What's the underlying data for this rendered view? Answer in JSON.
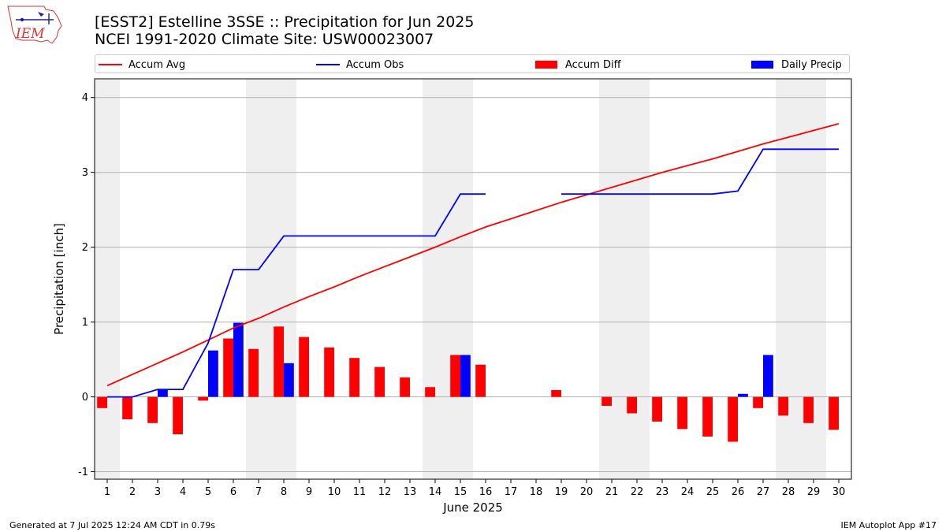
{
  "header": {
    "logo_text": "IEM",
    "title_line1": "[ESST2] Estelline 3SSE :: Precipitation for Jun 2025",
    "title_line2": "NCEI 1991-2020 Climate Site: USW00023007"
  },
  "legend": {
    "placement": "top",
    "items": [
      {
        "label": "Accum Avg",
        "kind": "line",
        "color": "#ff0000"
      },
      {
        "label": "Accum Obs",
        "kind": "line",
        "color": "#0000ff"
      },
      {
        "label": "Accum Diff",
        "kind": "bar",
        "color": "#ff0000"
      },
      {
        "label": "Daily Precip",
        "kind": "bar",
        "color": "#0000ff"
      }
    ]
  },
  "footer": {
    "left": "Generated at 7 Jul 2025 12:24 AM CDT in 0.79s",
    "right": "IEM Autoplot App #17"
  },
  "chart_data": {
    "type": "bar",
    "xlabel": "June 2025",
    "ylabel": "Precipitation [inch]",
    "xlim": [
      0.5,
      30.5
    ],
    "ylim": [
      -1.1,
      4.25
    ],
    "yticks": [
      -1,
      0,
      1,
      2,
      3,
      4
    ],
    "grid": "horizontal",
    "weekend_shading": [
      [
        0.5,
        1.5
      ],
      [
        6.5,
        8.5
      ],
      [
        13.5,
        15.5
      ],
      [
        20.5,
        22.5
      ],
      [
        27.5,
        29.5
      ]
    ],
    "days": [
      1,
      2,
      3,
      4,
      5,
      6,
      7,
      8,
      9,
      10,
      11,
      12,
      13,
      14,
      15,
      16,
      17,
      18,
      19,
      20,
      21,
      22,
      23,
      24,
      25,
      26,
      27,
      28,
      29,
      30
    ],
    "series": [
      {
        "name": "Accum Avg",
        "kind": "line",
        "color": "#ff0000",
        "values": [
          0.15,
          0.3,
          0.45,
          0.6,
          0.76,
          0.92,
          1.05,
          1.2,
          1.34,
          1.47,
          1.61,
          1.74,
          1.87,
          2.0,
          2.14,
          2.27,
          2.38,
          2.49,
          2.6,
          2.7,
          2.8,
          2.9,
          3.0,
          3.09,
          3.18,
          3.28,
          3.38,
          3.47,
          3.56,
          3.65
        ]
      },
      {
        "name": "Accum Obs",
        "kind": "line",
        "color": "#0000ff",
        "values": [
          0.0,
          0.0,
          0.1,
          0.1,
          0.72,
          1.7,
          1.7,
          2.15,
          2.15,
          2.15,
          2.15,
          2.15,
          2.15,
          2.15,
          2.71,
          2.71,
          null,
          null,
          2.71,
          2.71,
          2.71,
          2.71,
          2.71,
          2.71,
          2.71,
          2.75,
          3.31,
          3.31,
          3.31,
          3.31
        ]
      },
      {
        "name": "Accum Diff",
        "kind": "bar",
        "color": "#ff0000",
        "values": [
          -0.15,
          -0.3,
          -0.35,
          -0.5,
          -0.05,
          0.78,
          0.64,
          0.94,
          0.8,
          0.66,
          0.52,
          0.4,
          0.26,
          0.13,
          0.56,
          0.43,
          null,
          null,
          0.09,
          null,
          -0.12,
          -0.22,
          -0.33,
          -0.43,
          -0.53,
          -0.6,
          -0.15,
          -0.25,
          -0.35,
          -0.44
        ]
      },
      {
        "name": "Daily Precip",
        "kind": "bar",
        "color": "#0000ff",
        "values": [
          0,
          0,
          0.1,
          0,
          0.62,
          0.99,
          0,
          0.45,
          0,
          0,
          0,
          0,
          0,
          0,
          0.56,
          0,
          null,
          null,
          0,
          0,
          0,
          0,
          0,
          0,
          0,
          0.04,
          0.56,
          0,
          0,
          0
        ]
      }
    ]
  }
}
